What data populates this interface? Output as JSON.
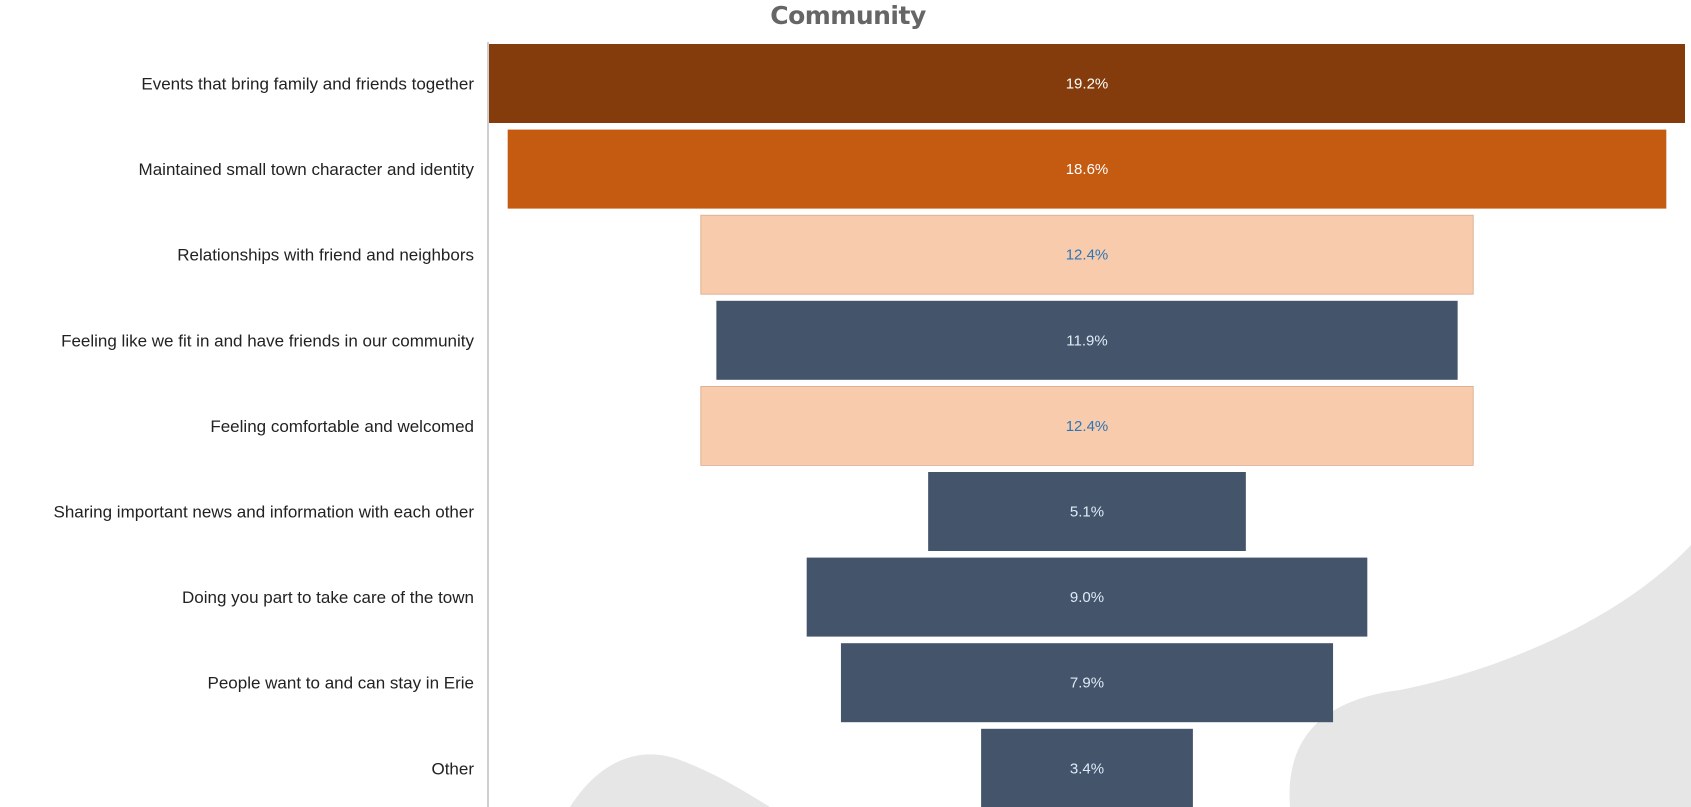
{
  "chart_data": {
    "type": "bar",
    "orientation": "horizontal-funnel",
    "title": "Community",
    "categories": [
      "Events that bring family and friends together",
      "Maintained small town character and identity",
      "Relationships with friend and neighbors",
      "Feeling like we fit in and have friends in our community",
      "Feeling comfortable and welcomed",
      "Sharing important news and information with each other",
      "Doing you part to take care of the town",
      "People want to and can stay in Erie",
      "Other"
    ],
    "values": [
      19.2,
      18.6,
      12.4,
      11.9,
      12.4,
      5.1,
      9.0,
      7.9,
      3.4
    ],
    "value_labels": [
      "19.2%",
      "18.6%",
      "12.4%",
      "11.9%",
      "12.4%",
      "5.1%",
      "9.0%",
      "7.9%",
      "3.4%"
    ],
    "bar_colors": [
      "#843C0C",
      "#C55A11",
      "#F8CBAD",
      "#44546A",
      "#F8CBAD",
      "#44546A",
      "#44546A",
      "#44546A",
      "#44546A"
    ],
    "label_colors": [
      "#FFFFFF",
      "#FFFFFF",
      "#2E75B6",
      "#DDEBF7",
      "#2E75B6",
      "#DDEBF7",
      "#DDEBF7",
      "#DDEBF7",
      "#DDEBF7"
    ],
    "xlim": [
      0,
      19.2
    ],
    "grid": false,
    "legend": "none"
  }
}
